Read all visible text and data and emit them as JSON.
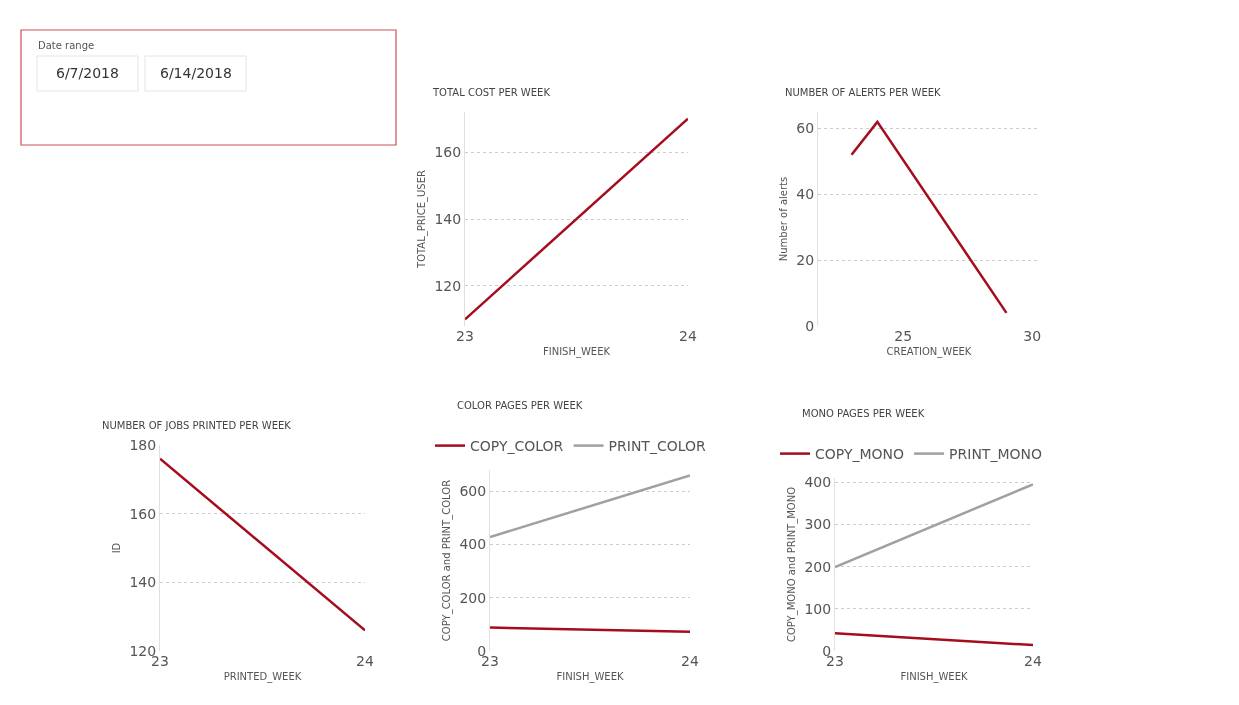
{
  "chart_data": [
    {
      "type": "other",
      "title": "Date range",
      "annotations": [
        "6/7/2018",
        "6/14/2018"
      ]
    },
    {
      "type": "line",
      "title": "TOTAL COST PER WEEK",
      "xlabel": "FINISH_WEEK",
      "ylabel": "TOTAL_PRICE_USER",
      "x": [
        23,
        24
      ],
      "xlim": [
        23,
        24
      ],
      "xticks": [
        23,
        24
      ],
      "ylim": [
        108,
        172
      ],
      "yticks": [
        120,
        140,
        160
      ],
      "grid": "y",
      "marker": "none",
      "line_style": "solid",
      "series": [
        {
          "color": "#a50d1e",
          "values": [
            110,
            170
          ]
        }
      ]
    },
    {
      "type": "line",
      "title": "NUMBER OF ALERTS PER WEEK",
      "xlabel": "CREATION_WEEK",
      "ylabel": "Number of alerts",
      "x": [
        23,
        24,
        29
      ],
      "xlim": [
        21.7,
        30.3
      ],
      "xticks": [
        25,
        30
      ],
      "ylim": [
        0,
        65
      ],
      "yticks": [
        0,
        20,
        40,
        60
      ],
      "grid": "y",
      "marker": "none",
      "line_style": "solid",
      "series": [
        {
          "color": "#a50d1e",
          "values": [
            52,
            62,
            4
          ]
        }
      ]
    },
    {
      "type": "line",
      "title": "NUMBER OF JOBS PRINTED PER WEEK",
      "xlabel": "PRINTED_WEEK",
      "ylabel": "ID",
      "x": [
        23,
        24
      ],
      "xlim": [
        23,
        24
      ],
      "xticks": [
        23,
        24
      ],
      "ylim": [
        120,
        180
      ],
      "yticks": [
        120,
        140,
        160,
        180
      ],
      "grid": "y",
      "marker": "none",
      "line_style": "solid",
      "series": [
        {
          "color": "#a50d1e",
          "values": [
            176,
            126
          ]
        }
      ]
    },
    {
      "type": "line",
      "title": "COLOR PAGES PER WEEK",
      "xlabel": "FINISH_WEEK",
      "ylabel": "COPY_COLOR and PRINT_COLOR",
      "x": [
        23,
        24
      ],
      "xlim": [
        23,
        24
      ],
      "xticks": [
        23,
        24
      ],
      "ylim": [
        0,
        680
      ],
      "yticks": [
        0,
        200,
        400,
        600
      ],
      "grid": "y",
      "marker": "none",
      "line_style": "solid",
      "legend": "top left",
      "series": [
        {
          "name": "COPY_COLOR",
          "color": "#a50d1e",
          "values": [
            88,
            72
          ]
        },
        {
          "name": "PRINT_COLOR",
          "color": "#a0a0a0",
          "values": [
            428,
            660
          ]
        }
      ]
    },
    {
      "type": "line",
      "title": "MONO PAGES PER WEEK",
      "xlabel": "FINISH_WEEK",
      "ylabel": "COPY_MONO and PRINT_MONO",
      "x": [
        23,
        24
      ],
      "xlim": [
        23,
        24
      ],
      "xticks": [
        23,
        24
      ],
      "ylim": [
        0,
        410
      ],
      "yticks": [
        0,
        100,
        200,
        300,
        400
      ],
      "grid": "y",
      "marker": "none",
      "line_style": "solid",
      "legend": "top left",
      "series": [
        {
          "name": "COPY_MONO",
          "color": "#a50d1e",
          "values": [
            42,
            14
          ]
        },
        {
          "name": "PRINT_MONO",
          "color": "#a0a0a0",
          "values": [
            199,
            395
          ]
        }
      ]
    }
  ]
}
